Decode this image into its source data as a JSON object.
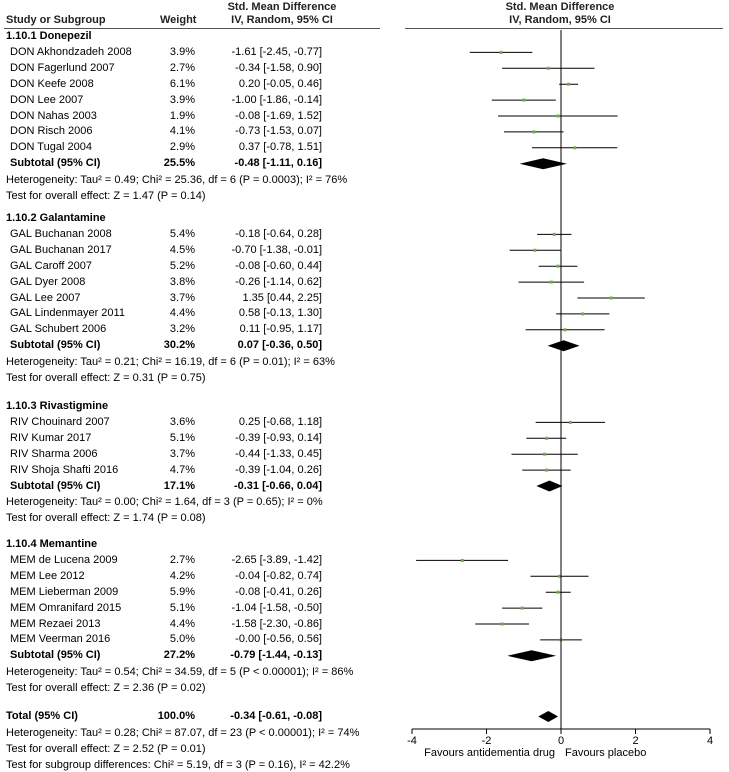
{
  "header": {
    "study": "Study or Subgroup",
    "weight": "Weight",
    "effect_line1": "Std. Mean Difference",
    "effect_line2": "IV, Random, 95% CI",
    "plot_line1": "Std. Mean Difference",
    "plot_line2": "IV, Random, 95% CI"
  },
  "chart_data": {
    "type": "forest",
    "xlim": [
      -4,
      4
    ],
    "xticks": [
      "-4",
      "-2",
      "0",
      "2",
      "4"
    ],
    "xtick_values": [
      -4,
      -2,
      0,
      2,
      4
    ],
    "axis_left_label": "Favours antidementia drug",
    "axis_right_label": "Favours placebo",
    "groups": [
      {
        "title": "1.10.1 Donepezil",
        "studies": [
          {
            "name": "DON Akhondzadeh 2008",
            "weight": "3.9%",
            "ci": "-1.61 [-2.45, -0.77]",
            "est": -1.61,
            "lo": -2.45,
            "hi": -0.77
          },
          {
            "name": "DON Fagerlund 2007",
            "weight": "2.7%",
            "ci": "-0.34 [-1.58, 0.90]",
            "est": -0.34,
            "lo": -1.58,
            "hi": 0.9
          },
          {
            "name": "DON Keefe 2008",
            "weight": "6.1%",
            "ci": "0.20 [-0.05, 0.46]",
            "est": 0.2,
            "lo": -0.05,
            "hi": 0.46
          },
          {
            "name": "DON Lee 2007",
            "weight": "3.9%",
            "ci": "-1.00 [-1.86, -0.14]",
            "est": -1.0,
            "lo": -1.86,
            "hi": -0.14
          },
          {
            "name": "DON Nahas 2003",
            "weight": "1.9%",
            "ci": "-0.08 [-1.69, 1.52]",
            "est": -0.08,
            "lo": -1.69,
            "hi": 1.52
          },
          {
            "name": "DON Risch 2006",
            "weight": "4.1%",
            "ci": "-0.73 [-1.53, 0.07]",
            "est": -0.73,
            "lo": -1.53,
            "hi": 0.07
          },
          {
            "name": "DON Tugal 2004",
            "weight": "2.9%",
            "ci": "0.37 [-0.78, 1.51]",
            "est": 0.37,
            "lo": -0.78,
            "hi": 1.51
          }
        ],
        "subtotal": {
          "label": "Subtotal (95% CI)",
          "weight": "25.5%",
          "ci": "-0.48 [-1.11, 0.16]",
          "est": -0.48,
          "lo": -1.11,
          "hi": 0.16
        },
        "heterogeneity": "Heterogeneity: Tau² = 0.49; Chi² = 25.36, df = 6 (P = 0.0003); I² = 76%",
        "overall": "Test for overall effect: Z = 1.47 (P = 0.14)"
      },
      {
        "title": "1.10.2 Galantamine",
        "studies": [
          {
            "name": "GAL Buchanan 2008",
            "weight": "5.4%",
            "ci": "-0.18 [-0.64, 0.28]",
            "est": -0.18,
            "lo": -0.64,
            "hi": 0.28
          },
          {
            "name": "GAL Buchanan 2017",
            "weight": "4.5%",
            "ci": "-0.70 [-1.38, -0.01]",
            "est": -0.7,
            "lo": -1.38,
            "hi": -0.01
          },
          {
            "name": "GAL Caroff 2007",
            "weight": "5.2%",
            "ci": "-0.08 [-0.60, 0.44]",
            "est": -0.08,
            "lo": -0.6,
            "hi": 0.44
          },
          {
            "name": "GAL Dyer 2008",
            "weight": "3.8%",
            "ci": "-0.26 [-1.14, 0.62]",
            "est": -0.26,
            "lo": -1.14,
            "hi": 0.62
          },
          {
            "name": "GAL Lee 2007",
            "weight": "3.7%",
            "ci": "1.35 [0.44, 2.25]",
            "est": 1.35,
            "lo": 0.44,
            "hi": 2.25
          },
          {
            "name": "GAL Lindenmayer 2011",
            "weight": "4.4%",
            "ci": "0.58 [-0.13, 1.30]",
            "est": 0.58,
            "lo": -0.13,
            "hi": 1.3
          },
          {
            "name": "GAL Schubert 2006",
            "weight": "3.2%",
            "ci": "0.11 [-0.95, 1.17]",
            "est": 0.11,
            "lo": -0.95,
            "hi": 1.17
          }
        ],
        "subtotal": {
          "label": "Subtotal (95% CI)",
          "weight": "30.2%",
          "ci": "0.07 [-0.36, 0.50]",
          "est": 0.07,
          "lo": -0.36,
          "hi": 0.5
        },
        "heterogeneity": "Heterogeneity: Tau² = 0.21; Chi² = 16.19, df = 6 (P = 0.01); I² = 63%",
        "overall": "Test for overall effect: Z = 0.31 (P = 0.75)"
      },
      {
        "title": "1.10.3 Rivastigmine",
        "studies": [
          {
            "name": "RIV Chouinard 2007",
            "weight": "3.6%",
            "ci": "0.25 [-0.68, 1.18]",
            "est": 0.25,
            "lo": -0.68,
            "hi": 1.18
          },
          {
            "name": "RIV Kumar 2017",
            "weight": "5.1%",
            "ci": "-0.39 [-0.93, 0.14]",
            "est": -0.39,
            "lo": -0.93,
            "hi": 0.14
          },
          {
            "name": "RIV Sharma 2006",
            "weight": "3.7%",
            "ci": "-0.44 [-1.33, 0.45]",
            "est": -0.44,
            "lo": -1.33,
            "hi": 0.45
          },
          {
            "name": "RIV Shoja Shafti 2016",
            "weight": "4.7%",
            "ci": "-0.39 [-1.04, 0.26]",
            "est": -0.39,
            "lo": -1.04,
            "hi": 0.26
          }
        ],
        "subtotal": {
          "label": "Subtotal (95% CI)",
          "weight": "17.1%",
          "ci": "-0.31 [-0.66, 0.04]",
          "est": -0.31,
          "lo": -0.66,
          "hi": 0.04
        },
        "heterogeneity": "Heterogeneity: Tau² = 0.00; Chi² = 1.64, df = 3 (P = 0.65); I² = 0%",
        "overall": "Test for overall effect: Z = 1.74 (P = 0.08)"
      },
      {
        "title": "1.10.4 Memantine",
        "studies": [
          {
            "name": "MEM de Lucena 2009",
            "weight": "2.7%",
            "ci": "-2.65 [-3.89, -1.42]",
            "est": -2.65,
            "lo": -3.89,
            "hi": -1.42
          },
          {
            "name": "MEM Lee 2012",
            "weight": "4.2%",
            "ci": "-0.04 [-0.82, 0.74]",
            "est": -0.04,
            "lo": -0.82,
            "hi": 0.74
          },
          {
            "name": "MEM Lieberman 2009",
            "weight": "5.9%",
            "ci": "-0.08 [-0.41, 0.26]",
            "est": -0.08,
            "lo": -0.41,
            "hi": 0.26
          },
          {
            "name": "MEM Omranifard 2015",
            "weight": "5.1%",
            "ci": "-1.04 [-1.58, -0.50]",
            "est": -1.04,
            "lo": -1.58,
            "hi": -0.5
          },
          {
            "name": "MEM Rezaei 2013",
            "weight": "4.4%",
            "ci": "-1.58 [-2.30, -0.86]",
            "est": -1.58,
            "lo": -2.3,
            "hi": -0.86
          },
          {
            "name": "MEM Veerman 2016",
            "weight": "5.0%",
            "ci": "-0.00 [-0.56, 0.56]",
            "est": 0.0,
            "lo": -0.56,
            "hi": 0.56
          }
        ],
        "subtotal": {
          "label": "Subtotal (95% CI)",
          "weight": "27.2%",
          "ci": "-0.79 [-1.44, -0.13]",
          "est": -0.79,
          "lo": -1.44,
          "hi": -0.13
        },
        "heterogeneity": "Heterogeneity: Tau² = 0.54; Chi² = 34.59, df = 5 (P < 0.00001); I² = 86%",
        "overall": "Test for overall effect: Z = 2.36 (P = 0.02)"
      }
    ],
    "total": {
      "label": "Total (95% CI)",
      "weight": "100.0%",
      "ci": "-0.34 [-0.61, -0.08]",
      "est": -0.34,
      "lo": -0.61,
      "hi": -0.08
    },
    "footer": [
      "Heterogeneity: Tau² = 0.28; Chi² = 87.07, df = 23 (P < 0.00001); I² = 74%",
      "Test for overall effect: Z = 2.52 (P = 0.01)",
      "Test for subgroup differences: Chi² = 5.19, df = 3 (P = 0.16), I² = 42.2%"
    ],
    "colors": {
      "point": "#6ab04c",
      "line": "#000000",
      "diamond": "#000000"
    }
  }
}
